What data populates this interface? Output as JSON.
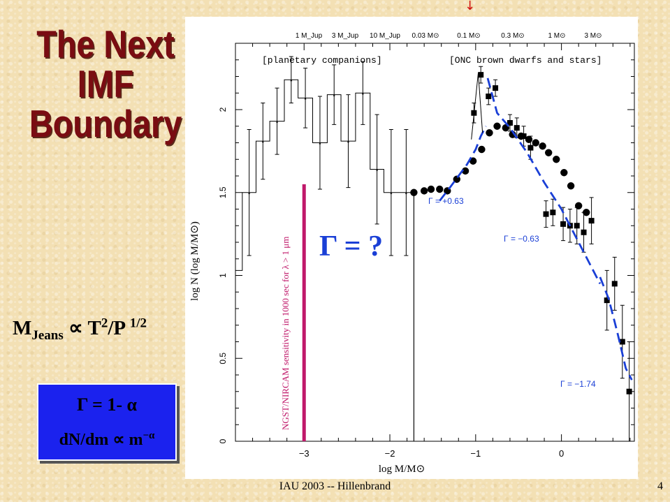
{
  "slide": {
    "title_lines": [
      "The Next",
      "IMF",
      "Boundary"
    ],
    "jeans": {
      "m": "M",
      "sub": "Jeans",
      "prop": "∝",
      "t": "T",
      "t_exp": "2",
      "p": "/P",
      "p_exp": "1/2"
    },
    "gamma_box": {
      "line1": "Γ = 1- α",
      "line2": "dN/dm ∝ m",
      "line2_exp": "−α"
    },
    "footer": "IAU 2003 -- Hillenbrand",
    "page_number": "4",
    "arrow_glyph": "↓",
    "colors": {
      "title": "#7a0c12",
      "box": "#1b22ee",
      "fit": "#1a3fd6",
      "sensitivity": "#c0186a"
    }
  },
  "chart_data": {
    "type": "line",
    "xlabel": "log M/M⊙",
    "ylabel": "log N (log M/M⊙)",
    "xlim": [
      -3.8,
      0.85
    ],
    "ylim": [
      0,
      2.4
    ],
    "x_ticks": [
      "−3",
      "−2",
      "−1",
      "0"
    ],
    "y_ticks": [
      "0",
      "0.5",
      "1",
      "1.5",
      "2"
    ],
    "top_axis_labels": [
      "1 M_Jup",
      "3 M_Jup",
      "10 M_Jup",
      "0.03 M⊙",
      "0.1 M⊙",
      "0.3 M⊙",
      "1 M⊙",
      "3 M⊙"
    ],
    "annotations": {
      "planetary": "[planetary companions]",
      "onc": "[ONC brown dwarfs and stars]",
      "gamma_unknown": "Γ = ?",
      "gamma_pos": "Γ = +0.63",
      "gamma_neg1": "Γ = −0.63",
      "gamma_neg2": "Γ = −1.74",
      "sensitivity": "NGST/NIRCAM sensitivity in 1000 sec for λ > 1 μm"
    },
    "sensitivity_x": -3.0,
    "sensitivity_y": [
      0,
      1.55
    ],
    "vertical_line_x": -1.72,
    "series": [
      {
        "kind": "histogram",
        "bins": [
          {
            "x0": -3.8,
            "x1": -3.72,
            "y": 1.03,
            "err": 0
          },
          {
            "x0": -3.72,
            "x1": -3.56,
            "y": 1.5,
            "err": 0.38
          },
          {
            "x0": -3.56,
            "x1": -3.4,
            "y": 1.81,
            "err": 0.23
          },
          {
            "x0": -3.4,
            "x1": -3.23,
            "y": 1.93,
            "err": 0.2
          },
          {
            "x0": -3.23,
            "x1": -3.07,
            "y": 2.18,
            "err": 0.14
          },
          {
            "x0": -3.07,
            "x1": -2.9,
            "y": 2.07,
            "err": 0.18
          },
          {
            "x0": -2.9,
            "x1": -2.73,
            "y": 1.8,
            "err": 0.28
          },
          {
            "x0": -2.73,
            "x1": -2.57,
            "y": 2.09,
            "err": 0.18
          },
          {
            "x0": -2.57,
            "x1": -2.4,
            "y": 1.81,
            "err": 0.28
          },
          {
            "x0": -2.4,
            "x1": -2.23,
            "y": 2.1,
            "err": 0.19
          },
          {
            "x0": -2.23,
            "x1": -2.07,
            "y": 1.64,
            "err": 0.33
          },
          {
            "x0": -2.07,
            "x1": -1.9,
            "y": 1.5,
            "err": 0.38
          },
          {
            "x0": -1.9,
            "x1": -1.72,
            "y": 1.5,
            "err": 0.38
          }
        ]
      },
      {
        "kind": "circles",
        "points": [
          {
            "x": -1.72,
            "y": 1.5
          },
          {
            "x": -1.6,
            "y": 1.51
          },
          {
            "x": -1.52,
            "y": 1.52
          },
          {
            "x": -1.42,
            "y": 1.52
          },
          {
            "x": -1.33,
            "y": 1.51
          },
          {
            "x": -1.22,
            "y": 1.58
          },
          {
            "x": -1.12,
            "y": 1.63
          },
          {
            "x": -1.03,
            "y": 1.69
          },
          {
            "x": -0.93,
            "y": 1.76
          },
          {
            "x": -0.84,
            "y": 1.86
          },
          {
            "x": -0.75,
            "y": 1.9
          },
          {
            "x": -0.65,
            "y": 1.89
          },
          {
            "x": -0.57,
            "y": 1.85
          },
          {
            "x": -0.47,
            "y": 1.84
          },
          {
            "x": -0.38,
            "y": 1.82
          },
          {
            "x": -0.3,
            "y": 1.8
          },
          {
            "x": -0.22,
            "y": 1.78
          },
          {
            "x": -0.15,
            "y": 1.74
          },
          {
            "x": -0.06,
            "y": 1.7
          },
          {
            "x": 0.03,
            "y": 1.62
          },
          {
            "x": 0.11,
            "y": 1.54
          },
          {
            "x": 0.2,
            "y": 1.42
          },
          {
            "x": 0.29,
            "y": 1.38
          }
        ]
      },
      {
        "kind": "squares",
        "points": [
          {
            "x": -1.02,
            "y": 1.98,
            "err": 0.06
          },
          {
            "x": -0.94,
            "y": 2.21,
            "err": 0.05
          },
          {
            "x": -0.85,
            "y": 2.08,
            "err": 0.05
          },
          {
            "x": -0.77,
            "y": 2.13,
            "err": 0.05
          },
          {
            "x": -0.6,
            "y": 1.92,
            "err": 0.05
          },
          {
            "x": -0.52,
            "y": 1.89,
            "err": 0.06
          },
          {
            "x": -0.44,
            "y": 1.84,
            "err": 0.06
          },
          {
            "x": -0.36,
            "y": 1.77,
            "err": 0.07
          },
          {
            "x": -0.18,
            "y": 1.37,
            "err": 0.08
          },
          {
            "x": -0.1,
            "y": 1.38,
            "err": 0.08
          },
          {
            "x": 0.02,
            "y": 1.31,
            "err": 0.1
          },
          {
            "x": 0.1,
            "y": 1.3,
            "err": 0.1
          },
          {
            "x": 0.18,
            "y": 1.3,
            "err": 0.11
          },
          {
            "x": 0.26,
            "y": 1.26,
            "err": 0.12
          },
          {
            "x": 0.35,
            "y": 1.33,
            "err": 0.14
          },
          {
            "x": 0.53,
            "y": 0.85,
            "err": 0.18
          },
          {
            "x": 0.62,
            "y": 0.95,
            "err": 0.16
          },
          {
            "x": 0.71,
            "y": 0.6,
            "err": 0.22
          },
          {
            "x": 0.79,
            "y": 0.3,
            "err": 0.3
          }
        ]
      },
      {
        "kind": "fit",
        "segments": [
          [
            [
              -1.42,
              1.45
            ],
            [
              -1.3,
              1.53
            ],
            [
              -1.2,
              1.6
            ],
            [
              -1.1,
              1.67
            ],
            [
              -1.0,
              1.76
            ],
            [
              -0.94,
              1.84
            ],
            [
              -0.88,
              1.9
            ]
          ],
          [
            [
              -0.86,
              2.19
            ],
            [
              -0.75,
              1.98
            ],
            [
              -0.6,
              1.89
            ],
            [
              -0.4,
              1.74
            ],
            [
              -0.2,
              1.56
            ],
            [
              0.0,
              1.4
            ],
            [
              0.2,
              1.2
            ],
            [
              0.45,
              0.95
            ]
          ],
          [
            [
              0.45,
              0.99
            ],
            [
              0.55,
              0.86
            ],
            [
              0.65,
              0.66
            ],
            [
              0.75,
              0.44
            ],
            [
              0.82,
              0.37
            ]
          ]
        ]
      }
    ]
  }
}
